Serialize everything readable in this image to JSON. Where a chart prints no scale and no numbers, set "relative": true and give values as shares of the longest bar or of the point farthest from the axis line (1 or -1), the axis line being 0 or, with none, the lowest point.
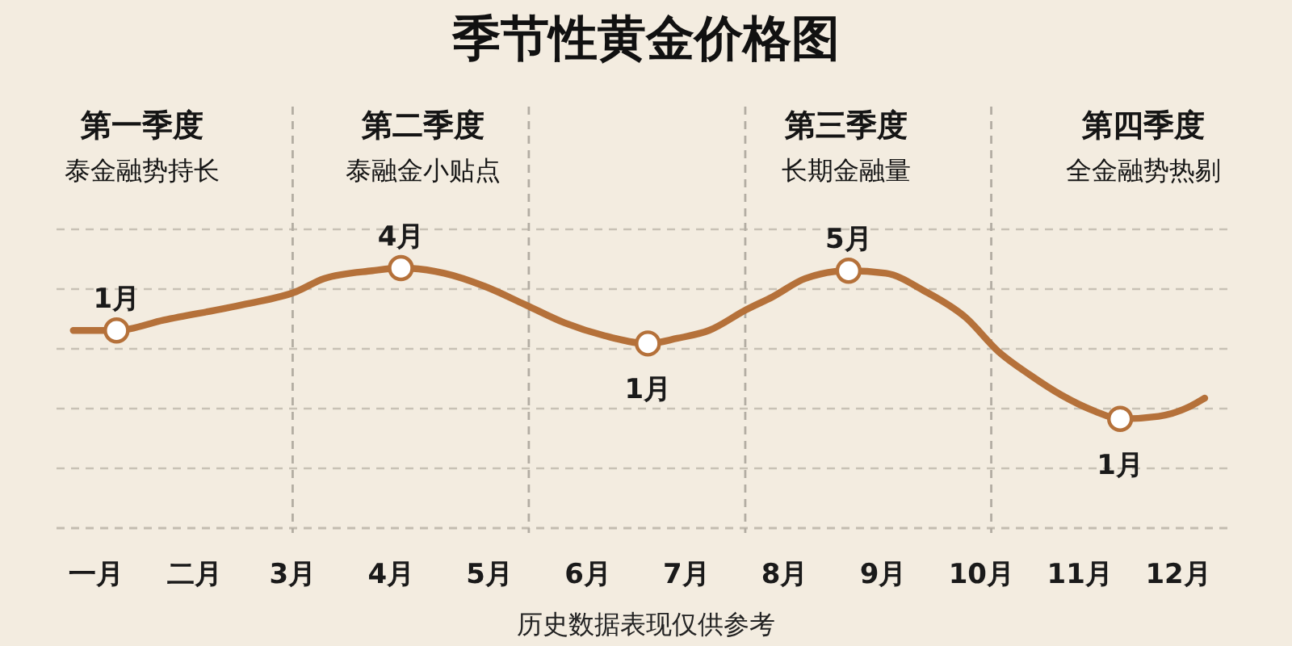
{
  "chart_data": {
    "type": "line",
    "title": "季节性黄金价格图",
    "relative": true,
    "xlim": [
      0.6,
      12.5
    ],
    "xticks": [
      {
        "value": 1,
        "label": "一月"
      },
      {
        "value": 2,
        "label": "二月"
      },
      {
        "value": 3,
        "label": "3月"
      },
      {
        "value": 4,
        "label": "4月"
      },
      {
        "value": 5,
        "label": "5月"
      },
      {
        "value": 6,
        "label": "6月"
      },
      {
        "value": 7,
        "label": "7月"
      },
      {
        "value": 8,
        "label": "8月"
      },
      {
        "value": 9,
        "label": "9月"
      },
      {
        "value": 10,
        "label": "10月"
      },
      {
        "value": 11,
        "label": "11月"
      },
      {
        "value": 12,
        "label": "12月"
      }
    ],
    "grid": "y",
    "series": [
      {
        "color": "#b5713a",
        "x": [
          0.77,
          1.21,
          1.69,
          2.5,
          3.04,
          3.32,
          3.81,
          4.1,
          4.54,
          4.95,
          5.36,
          5.76,
          6.17,
          6.61,
          6.91,
          7.23,
          7.61,
          7.88,
          8.21,
          8.65,
          9.03,
          9.43,
          9.84,
          10.17,
          10.49,
          10.82,
          11.15,
          11.41,
          11.8,
          12.13,
          12.27
        ],
        "values": [
          0.76,
          0.76,
          0.8,
          0.86,
          0.91,
          0.96,
          0.99,
          1.0,
          0.98,
          0.93,
          0.86,
          0.79,
          0.74,
          0.71,
          0.73,
          0.76,
          0.84,
          0.89,
          0.96,
          0.99,
          0.98,
          0.91,
          0.81,
          0.68,
          0.59,
          0.51,
          0.45,
          0.42,
          0.43,
          0.47,
          0.5
        ]
      },
      {
        "type": "scatter",
        "color": "#b5713a",
        "marker": "circle",
        "x": [
          1.21,
          4.1,
          6.61,
          8.65,
          11.41
        ],
        "values": [
          0.76,
          1.0,
          0.71,
          0.99,
          0.42
        ]
      }
    ],
    "ref_lines": [
      {
        "axis": "x",
        "value": 3.0,
        "color": "#b3ada3",
        "line_style": "dashed"
      },
      {
        "axis": "x",
        "value": 5.4,
        "color": "#b3ada3",
        "line_style": "dashed"
      },
      {
        "axis": "x",
        "value": 7.6,
        "color": "#b3ada3",
        "line_style": "dashed"
      },
      {
        "axis": "x",
        "value": 10.1,
        "color": "#b3ada3",
        "line_style": "dashed"
      }
    ],
    "annotations": [
      "第一季度",
      "泰金融势持长",
      "第二季度",
      "泰融金小贴点",
      "第三季度",
      "长期金融量",
      "第四季度",
      "全金融势热剔",
      {
        "text": "1月",
        "x": 1.21,
        "y": 0.76
      },
      {
        "text": "4月",
        "x": 4.1,
        "y": 1.0
      },
      {
        "text": "1月",
        "x": 6.61,
        "y": 0.71
      },
      {
        "text": "5月",
        "x": 8.65,
        "y": 0.99
      },
      {
        "text": "1月",
        "x": 11.41,
        "y": 0.42
      },
      "历史数据表现仅供参考"
    ]
  }
}
